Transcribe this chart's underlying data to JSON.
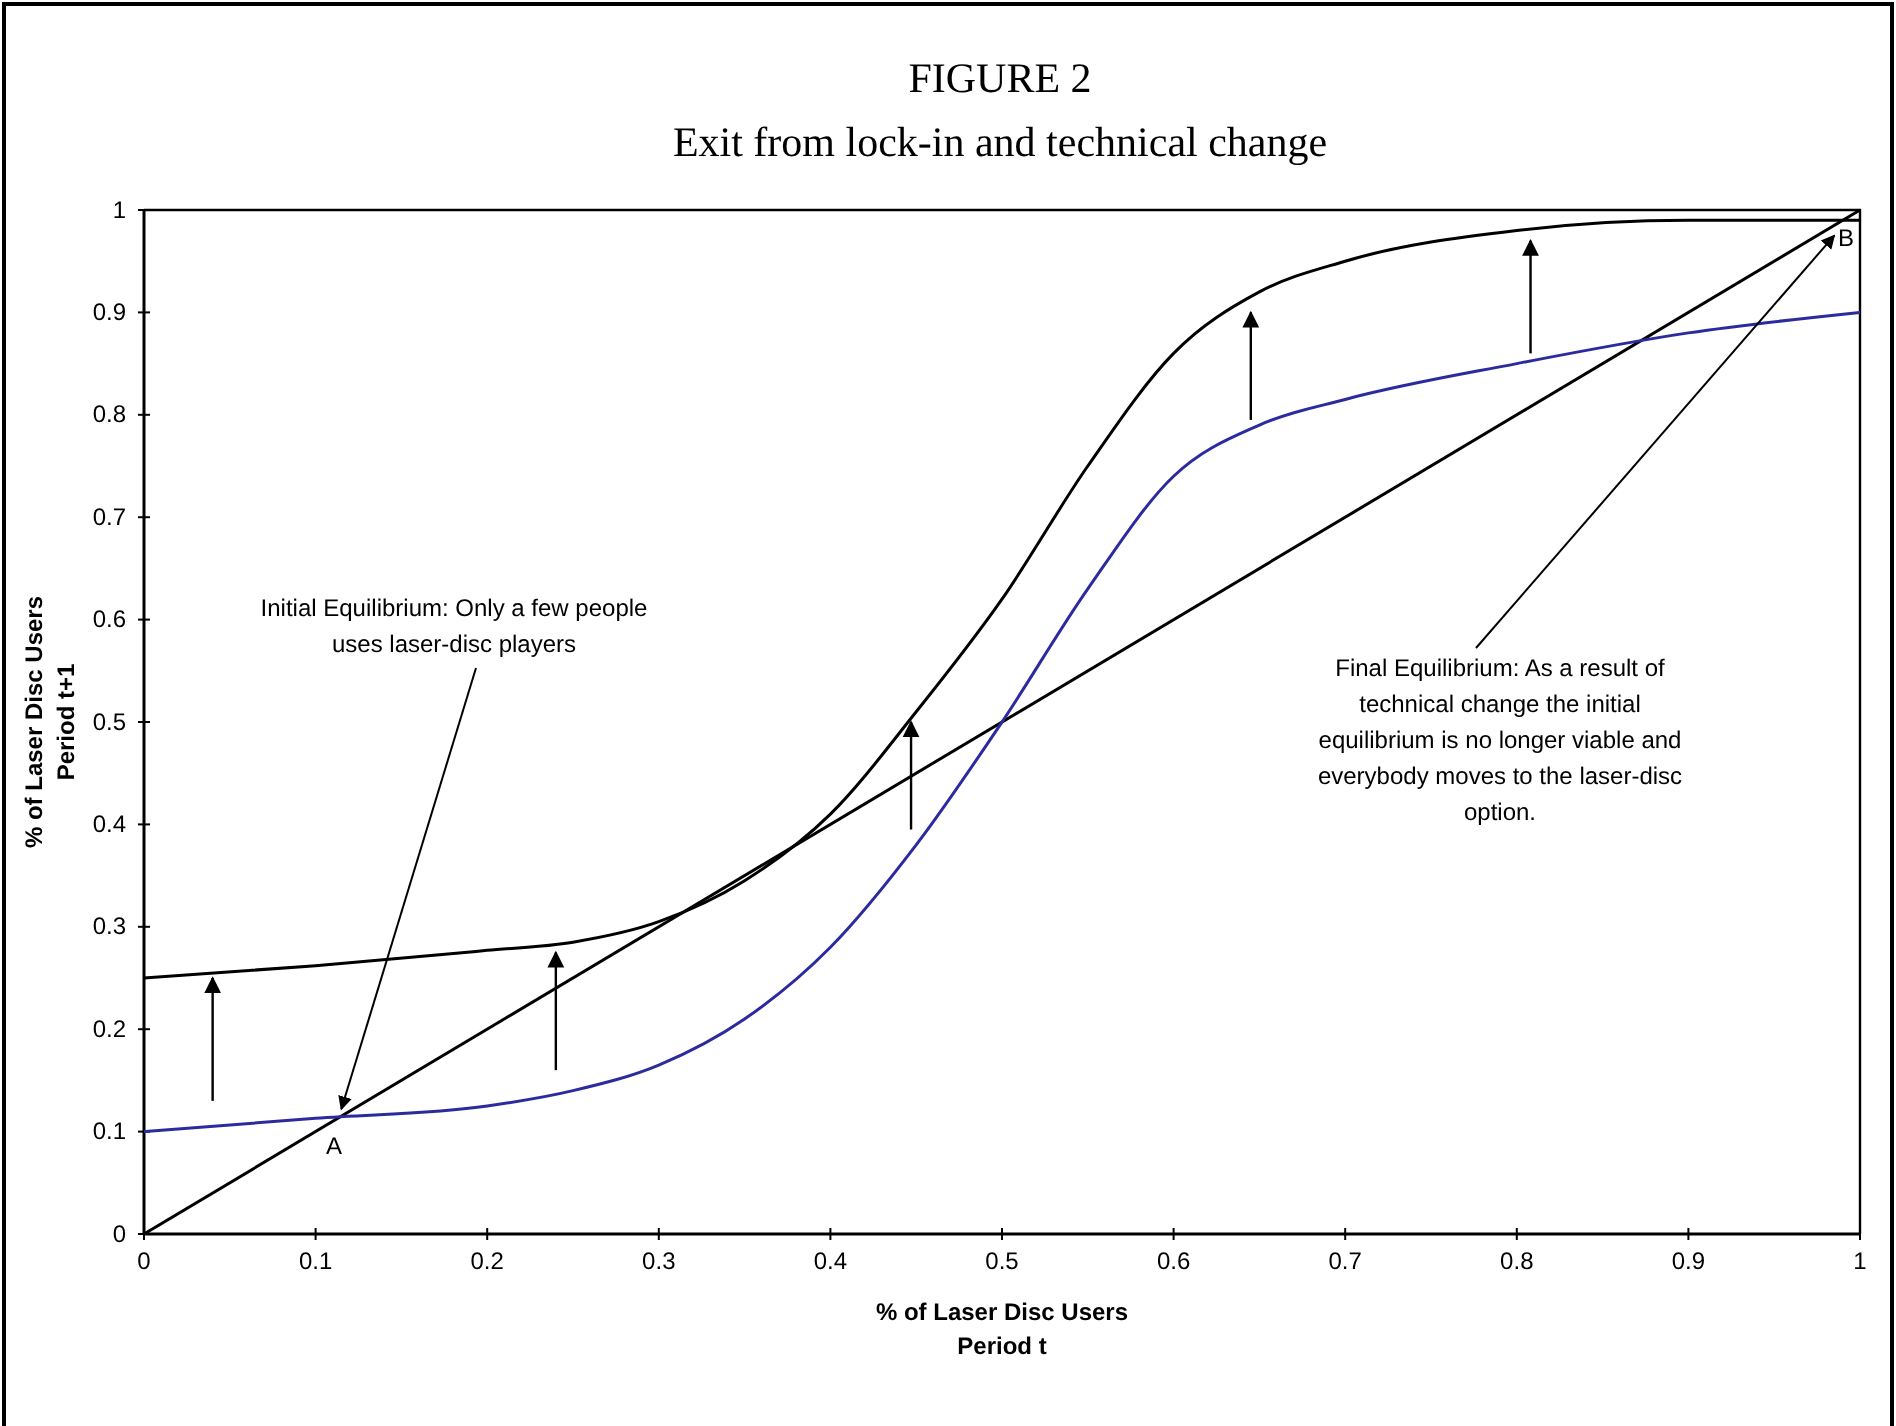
{
  "chart_data": {
    "type": "line",
    "title": "FIGURE 2",
    "subtitle": "Exit from lock-in and technical change",
    "xlabel": "% of Laser Disc Users\nPeriod t",
    "ylabel": "% of Laser Disc Users\nPeriod t+1",
    "xlim": [
      0,
      1
    ],
    "ylim": [
      0,
      1
    ],
    "xticks": [
      0,
      0.1,
      0.2,
      0.3,
      0.4,
      0.5,
      0.6,
      0.7,
      0.8,
      0.9,
      1
    ],
    "yticks": [
      0,
      0.1,
      0.2,
      0.3,
      0.4,
      0.5,
      0.6,
      0.7,
      0.8,
      0.9,
      1
    ],
    "grid": false,
    "line_style": "solid",
    "series": [
      {
        "color": "#000000",
        "x": [
          0,
          1
        ],
        "values": [
          0,
          1
        ]
      },
      {
        "color": "#2b2b9e",
        "x": [
          0,
          0.1,
          0.2,
          0.25,
          0.3,
          0.35,
          0.4,
          0.45,
          0.5,
          0.55,
          0.6,
          0.65,
          0.7,
          0.8,
          0.9,
          1
        ],
        "values": [
          0.1,
          0.113,
          0.125,
          0.14,
          0.165,
          0.21,
          0.28,
          0.38,
          0.5,
          0.63,
          0.74,
          0.79,
          0.815,
          0.85,
          0.88,
          0.9
        ]
      },
      {
        "color": "#000000",
        "x": [
          0,
          0.1,
          0.2,
          0.25,
          0.3,
          0.35,
          0.4,
          0.45,
          0.5,
          0.55,
          0.6,
          0.65,
          0.7,
          0.8,
          0.9,
          1
        ],
        "values": [
          0.25,
          0.262,
          0.277,
          0.285,
          0.305,
          0.345,
          0.41,
          0.51,
          0.62,
          0.75,
          0.86,
          0.92,
          0.95,
          0.98,
          0.99,
          0.99
        ]
      }
    ],
    "annotations": [
      {
        "text": "Initial Equilibrium: Only a few people\nuses laser-disc players",
        "x": 0.115,
        "y": 0.122
      },
      {
        "text": "Final Equilibrium: As a result of\ntechnical change the initial\nequilibrium is no longer viable and\neverybody moves to the laser-disc\noption.",
        "x": 0.985,
        "y": 0.975
      },
      {
        "text": "A",
        "x": 0.113,
        "y": 0.113
      },
      {
        "text": "B",
        "x": 1,
        "y": 1
      }
    ]
  }
}
